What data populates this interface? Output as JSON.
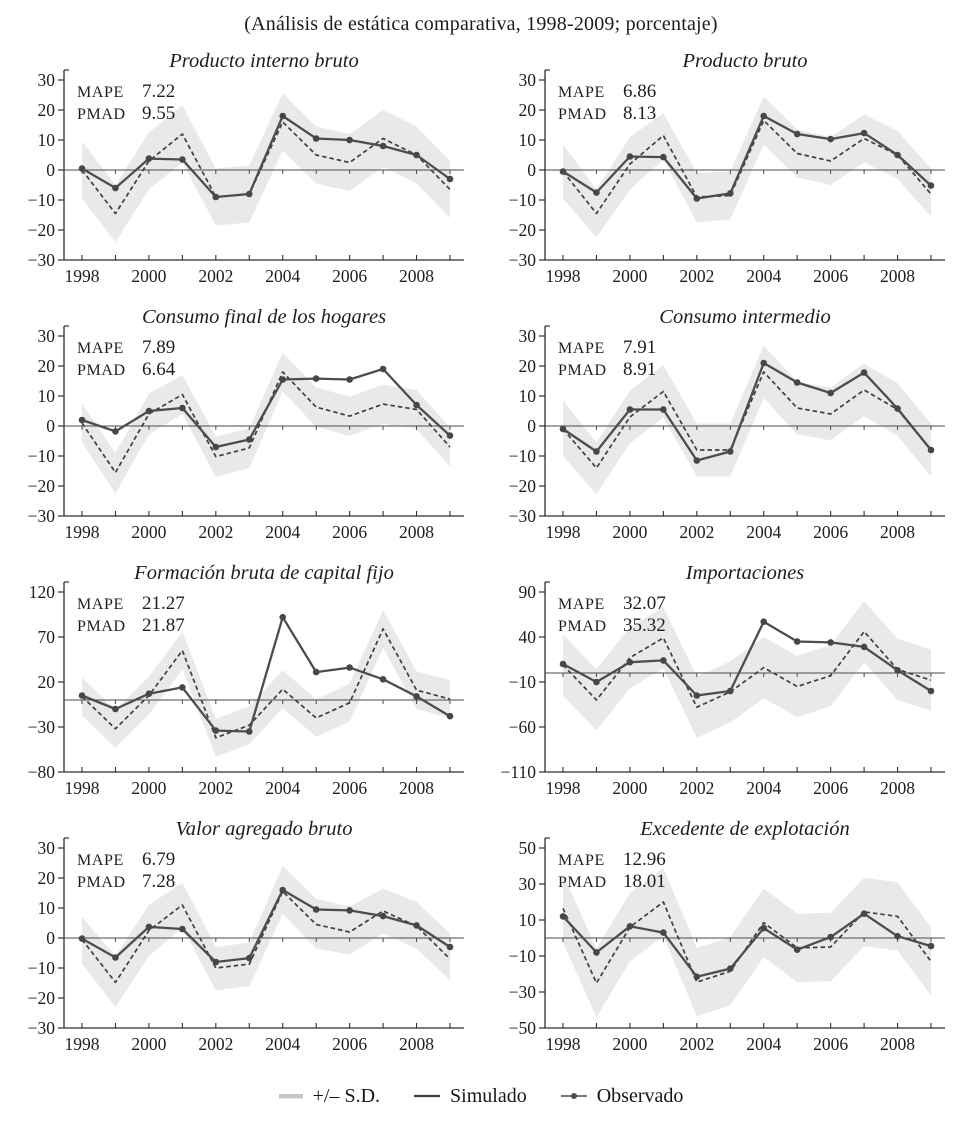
{
  "page": {
    "subtitle": "(Análisis de estática comparativa, 1998-2009; porcentaje)"
  },
  "legend": {
    "sd_label": "+/– S.D.",
    "simulado_label": "Simulado",
    "observado_label": "Observado"
  },
  "stats_labels": {
    "mape": "MAPE",
    "pmad": "PMAD"
  },
  "colors": {
    "band": "#e9e9e9",
    "legend_band": "#c6c6c6",
    "axis": "#2e2e2e",
    "zero_line": "#4a4a4a",
    "simulado": "#3f3f3f",
    "observado": "#4d4d4d",
    "text": "#1e1e1e"
  },
  "chart_data": [
    {
      "type": "line",
      "title": "Producto interno bruto",
      "mape": "7.22",
      "pmad": "9.55",
      "x": [
        1998,
        1999,
        2000,
        2001,
        2002,
        2003,
        2004,
        2005,
        2006,
        2007,
        2008,
        2009
      ],
      "x_tick_labels": [
        "1998",
        "2000",
        "2002",
        "2004",
        "2006",
        "2008"
      ],
      "ylim": [
        -30,
        30
      ],
      "yticks": [
        30,
        20,
        10,
        0,
        -10,
        -20,
        -30
      ],
      "series": [
        {
          "name": "+/- S.D.",
          "type": "band",
          "upper": [
            9.5,
            -5,
            12.5,
            21.5,
            0.5,
            1.5,
            25.5,
            14.5,
            12,
            20,
            14.5,
            3
          ],
          "lower": [
            -9.5,
            -24,
            -6.5,
            2.5,
            -18.5,
            -17.5,
            6.5,
            -4.5,
            -7,
            1,
            -4.5,
            -16
          ]
        },
        {
          "name": "Simulado",
          "type": "dashed",
          "values": [
            0,
            -14.5,
            3,
            12,
            -9,
            -8,
            16,
            5,
            2.5,
            10.5,
            5,
            -6.5
          ]
        },
        {
          "name": "Observado",
          "type": "solid-dot",
          "values": [
            0.5,
            -6,
            3.8,
            3.5,
            -9,
            -8,
            18,
            10.5,
            10,
            8,
            5,
            -3
          ]
        }
      ]
    },
    {
      "type": "line",
      "title": "Producto bruto",
      "mape": "6.86",
      "pmad": "8.13",
      "x": [
        1998,
        1999,
        2000,
        2001,
        2002,
        2003,
        2004,
        2005,
        2006,
        2007,
        2008,
        2009
      ],
      "x_tick_labels": [
        "1998",
        "2000",
        "2002",
        "2004",
        "2006",
        "2008"
      ],
      "ylim": [
        -30,
        30
      ],
      "yticks": [
        30,
        20,
        10,
        0,
        -10,
        -20,
        -30
      ],
      "series": [
        {
          "name": "+/- S.D.",
          "type": "band",
          "upper": [
            8.5,
            -6.5,
            11,
            19,
            -1,
            -0.5,
            24.5,
            13.5,
            11,
            18.5,
            13,
            0.5
          ],
          "lower": [
            -9.5,
            -22.5,
            -6.5,
            3.5,
            -17.5,
            -16.5,
            8.5,
            -2.5,
            -5,
            2.5,
            -3,
            -15.5
          ]
        },
        {
          "name": "Simulado",
          "type": "dashed",
          "values": [
            -0.5,
            -14.5,
            2,
            11.5,
            -9,
            -8.5,
            16.5,
            5.5,
            3,
            10.5,
            5,
            -8
          ]
        },
        {
          "name": "Observado",
          "type": "solid-dot",
          "values": [
            -0.5,
            -7.5,
            4.5,
            4.3,
            -9.5,
            -7.8,
            18,
            12,
            10.3,
            12.3,
            5,
            -5.2
          ]
        }
      ]
    },
    {
      "type": "line",
      "title": "Consumo final de los hogares",
      "mape": "7.89",
      "pmad": "6.64",
      "x": [
        1998,
        1999,
        2000,
        2001,
        2002,
        2003,
        2004,
        2005,
        2006,
        2007,
        2008,
        2009
      ],
      "x_tick_labels": [
        "1998",
        "2000",
        "2002",
        "2004",
        "2006",
        "2008"
      ],
      "ylim": [
        -30,
        30
      ],
      "yticks": [
        30,
        20,
        10,
        0,
        -10,
        -20,
        -30
      ],
      "series": [
        {
          "name": "+/- S.D.",
          "type": "band",
          "upper": [
            7.5,
            -9,
            10.8,
            17,
            -3.5,
            -0.8,
            24.5,
            12.8,
            9.8,
            13.8,
            12,
            -0.5
          ],
          "lower": [
            -5.5,
            -22.5,
            -2.8,
            4,
            -17,
            -14,
            11.5,
            -0.3,
            -3.3,
            0.8,
            -1,
            -13.5
          ]
        },
        {
          "name": "Simulado",
          "type": "dashed",
          "values": [
            1,
            -15.5,
            4,
            10.5,
            -10.2,
            -7.3,
            18,
            6.3,
            3.3,
            7.3,
            5.5,
            -7
          ]
        },
        {
          "name": "Observado",
          "type": "solid-dot",
          "values": [
            2,
            -1.8,
            5,
            6,
            -7,
            -4.5,
            15.5,
            15.8,
            15.5,
            19,
            7,
            -3.2
          ]
        }
      ]
    },
    {
      "type": "line",
      "title": "Consumo intermedio",
      "mape": "7.91",
      "pmad": "8.91",
      "x": [
        1998,
        1999,
        2000,
        2001,
        2002,
        2003,
        2004,
        2005,
        2006,
        2007,
        2008,
        2009
      ],
      "x_tick_labels": [
        "1998",
        "2000",
        "2002",
        "2004",
        "2006",
        "2008"
      ],
      "ylim": [
        -30,
        30
      ],
      "yticks": [
        30,
        20,
        10,
        0,
        -10,
        -20,
        -30
      ],
      "series": [
        {
          "name": "+/- S.D.",
          "type": "band",
          "upper": [
            8.5,
            -5.5,
            11.8,
            20.3,
            0.8,
            0.8,
            26.8,
            14.8,
            12.8,
            20.8,
            14.3,
            0.8
          ],
          "lower": [
            -10,
            -22.8,
            -5.8,
            2.8,
            -16.8,
            -16.8,
            9.3,
            -2.8,
            -4.8,
            3.3,
            -3.3,
            -16.8
          ]
        },
        {
          "name": "Simulado",
          "type": "dashed",
          "values": [
            -1,
            -14,
            3,
            11.5,
            -8,
            -8,
            18,
            6,
            4,
            12,
            5.5,
            -8
          ]
        },
        {
          "name": "Observado",
          "type": "solid-dot",
          "values": [
            -1,
            -8.5,
            5.5,
            5.5,
            -11.5,
            -8.5,
            21,
            14.5,
            11,
            17.8,
            5.8,
            -8
          ]
        }
      ]
    },
    {
      "type": "line",
      "title": "Formación bruta de capital fijo",
      "mape": "21.27",
      "pmad": "21.87",
      "x": [
        1998,
        1999,
        2000,
        2001,
        2002,
        2003,
        2004,
        2005,
        2006,
        2007,
        2008,
        2009
      ],
      "x_tick_labels": [
        "1998",
        "2000",
        "2002",
        "2004",
        "2006",
        "2008"
      ],
      "ylim": [
        -80,
        120
      ],
      "yticks": [
        120,
        70,
        20,
        -30,
        -80
      ],
      "series": [
        {
          "name": "+/- S.D.",
          "type": "band",
          "upper": [
            25,
            -11,
            26,
            76,
            -21,
            -7,
            33,
            1,
            18,
            100,
            32,
            22
          ],
          "lower": [
            -17,
            -53,
            -16,
            34,
            -63,
            -49,
            -9,
            -41,
            -24,
            58,
            -10,
            -20
          ]
        },
        {
          "name": "Simulado",
          "type": "dashed",
          "values": [
            4,
            -32,
            5,
            55,
            -42,
            -28,
            12,
            -20,
            -3,
            79,
            11,
            1
          ]
        },
        {
          "name": "Observado",
          "type": "solid-dot",
          "values": [
            5,
            -10,
            7,
            14,
            -34,
            -35,
            92,
            31,
            36,
            23,
            4,
            -18
          ]
        }
      ]
    },
    {
      "type": "line",
      "title": "Importaciones",
      "mape": "32.07",
      "pmad": "35.32",
      "x": [
        1998,
        1999,
        2000,
        2001,
        2002,
        2003,
        2004,
        2005,
        2006,
        2007,
        2008,
        2009
      ],
      "x_tick_labels": [
        "1998",
        "2000",
        "2002",
        "2004",
        "2006",
        "2008"
      ],
      "ylim": [
        -110,
        90
      ],
      "yticks": [
        90,
        40,
        -10,
        -60,
        -110
      ],
      "series": [
        {
          "name": "+/- S.D.",
          "type": "band",
          "upper": [
            43,
            4,
            51,
            73,
            -4,
            13,
            40,
            19,
            31,
            80,
            38,
            26
          ],
          "lower": [
            -25,
            -64,
            -17,
            5,
            -72,
            -55,
            -28,
            -49,
            -37,
            12,
            -30,
            -42
          ]
        },
        {
          "name": "Simulado",
          "type": "dashed",
          "values": [
            9,
            -30,
            17,
            39,
            -38,
            -21,
            6,
            -15,
            -3,
            46,
            4,
            -8
          ]
        },
        {
          "name": "Observado",
          "type": "solid-dot",
          "values": [
            10,
            -10,
            12,
            14,
            -25,
            -20,
            57,
            35,
            34,
            29,
            3,
            -20
          ]
        }
      ]
    },
    {
      "type": "line",
      "title": "Valor agregado bruto",
      "mape": "6.79",
      "pmad": "7.28",
      "x": [
        1998,
        1999,
        2000,
        2001,
        2002,
        2003,
        2004,
        2005,
        2006,
        2007,
        2008,
        2009
      ],
      "x_tick_labels": [
        "1998",
        "2000",
        "2002",
        "2004",
        "2006",
        "2008"
      ],
      "ylim": [
        -30,
        30
      ],
      "yticks": [
        30,
        20,
        10,
        0,
        -10,
        -20,
        -30
      ],
      "series": [
        {
          "name": "+/- S.D.",
          "type": "band",
          "upper": [
            7,
            -6,
            11,
            18.5,
            -3,
            -1.5,
            24,
            13,
            10.5,
            16.5,
            12,
            1.5
          ],
          "lower": [
            -8.5,
            -23,
            -6,
            3.5,
            -17.5,
            -16,
            8,
            -3.5,
            -5.5,
            1.5,
            -3.5,
            -14
          ]
        },
        {
          "name": "Simulado",
          "type": "dashed",
          "values": [
            -0.5,
            -14.8,
            2.5,
            11,
            -10,
            -8.7,
            15.5,
            4.5,
            2,
            9,
            4,
            -7
          ]
        },
        {
          "name": "Observado",
          "type": "solid-dot",
          "values": [
            -0.2,
            -6.5,
            3.7,
            3,
            -8,
            -6.7,
            16,
            9.5,
            9.2,
            7.3,
            4.2,
            -3
          ]
        }
      ]
    },
    {
      "type": "line",
      "title": "Excedente de explotación",
      "mape": "12.96",
      "pmad": "18.01",
      "x": [
        1998,
        1999,
        2000,
        2001,
        2002,
        2003,
        2004,
        2005,
        2006,
        2007,
        2008,
        2009
      ],
      "x_tick_labels": [
        "1998",
        "2000",
        "2002",
        "2004",
        "2006",
        "2008"
      ],
      "ylim": [
        -50,
        50
      ],
      "yticks": [
        50,
        30,
        10,
        -10,
        -30,
        -50
      ],
      "series": [
        {
          "name": "+/- S.D.",
          "type": "band",
          "upper": [
            35.5,
            -6,
            25,
            39,
            -5.5,
            0.5,
            27.5,
            13.5,
            14,
            33.5,
            31,
            6
          ],
          "lower": [
            -2.5,
            -44,
            -13,
            1,
            -43.5,
            -37.5,
            -10.5,
            -24.5,
            -24,
            -4.5,
            -7,
            -32
          ]
        },
        {
          "name": "Simulado",
          "type": "dashed",
          "values": [
            16.5,
            -25,
            6,
            20,
            -24.5,
            -18.5,
            8.5,
            -5.5,
            -5,
            14.5,
            12,
            -13
          ]
        },
        {
          "name": "Observado",
          "type": "solid-dot",
          "values": [
            12,
            -8,
            6.5,
            3,
            -21.5,
            -17,
            5.5,
            -6.5,
            0.5,
            13.5,
            1,
            -4.5
          ]
        }
      ]
    }
  ]
}
